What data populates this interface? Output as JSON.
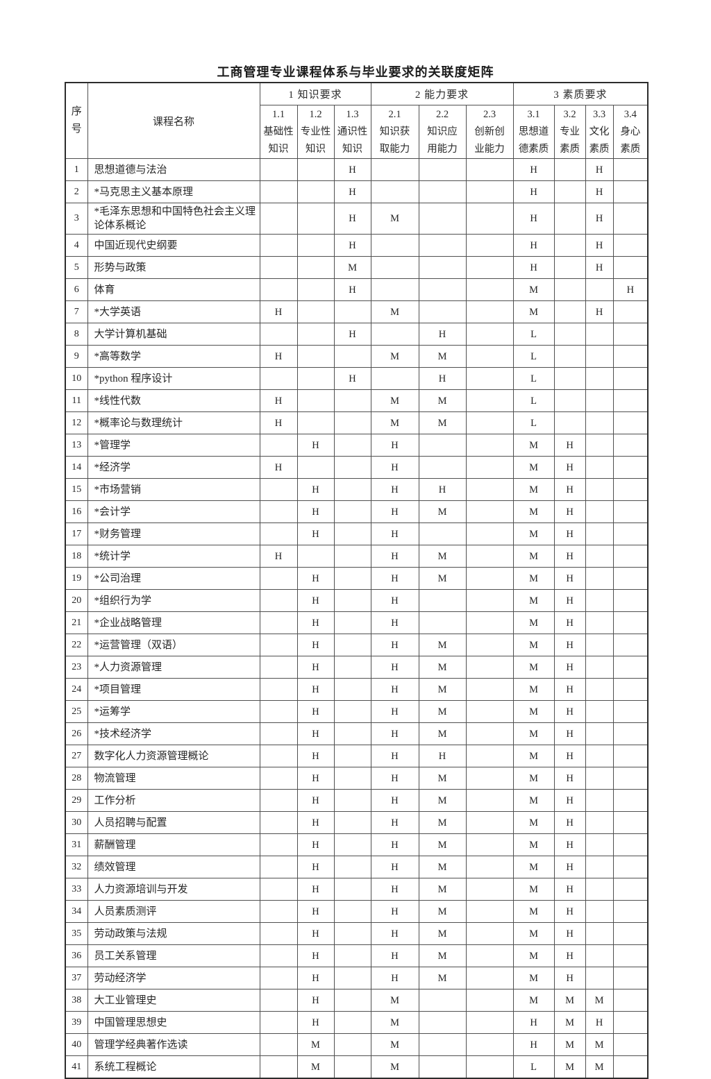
{
  "page": {
    "title": "工商管理专业课程体系与毕业要求的关联度矩阵"
  },
  "table": {
    "corner": {
      "index_line1": "序",
      "index_line2": "号",
      "course": "课程名称"
    },
    "groups": [
      {
        "label": "1 知识要求",
        "span": 3
      },
      {
        "label": "2 能力要求",
        "span": 3
      },
      {
        "label": "3 素质要求",
        "span": 4
      }
    ],
    "subheaders": [
      [
        "1.1",
        "基础性",
        "知识"
      ],
      [
        "1.2",
        "专业性",
        "知识"
      ],
      [
        "1.3",
        "通识性",
        "知识"
      ],
      [
        "2.1",
        "知识获",
        "取能力"
      ],
      [
        "2.2",
        "知识应",
        "用能力"
      ],
      [
        "2.3",
        "创新创",
        "业能力"
      ],
      [
        "3.1",
        "思想道",
        "德素质"
      ],
      [
        "3.2",
        "专业",
        "素质"
      ],
      [
        "3.3",
        "文化",
        "素质"
      ],
      [
        "3.4",
        "身心",
        "素质"
      ]
    ],
    "legend_values": [
      "H",
      "M",
      "L"
    ],
    "rows": [
      {
        "no": "1",
        "course": "思想道德与法治",
        "v": [
          "",
          "",
          "H",
          "",
          "",
          "",
          "H",
          "",
          "H",
          ""
        ]
      },
      {
        "no": "2",
        "course": "*马克思主义基本原理",
        "v": [
          "",
          "",
          "H",
          "",
          "",
          "",
          "H",
          "",
          "H",
          ""
        ]
      },
      {
        "no": "3",
        "course": "*毛泽东思想和中国特色社会主义理论体系概论",
        "v": [
          "",
          "",
          "H",
          "M",
          "",
          "",
          "H",
          "",
          "H",
          ""
        ]
      },
      {
        "no": "4",
        "course": "中国近现代史纲要",
        "v": [
          "",
          "",
          "H",
          "",
          "",
          "",
          "H",
          "",
          "H",
          ""
        ]
      },
      {
        "no": "5",
        "course": "形势与政策",
        "v": [
          "",
          "",
          "M",
          "",
          "",
          "",
          "H",
          "",
          "H",
          ""
        ]
      },
      {
        "no": "6",
        "course": "体育",
        "v": [
          "",
          "",
          "H",
          "",
          "",
          "",
          "M",
          "",
          "",
          "H"
        ]
      },
      {
        "no": "7",
        "course": "*大学英语",
        "v": [
          "H",
          "",
          "",
          "M",
          "",
          "",
          "M",
          "",
          "H",
          ""
        ]
      },
      {
        "no": "8",
        "course": "大学计算机基础",
        "v": [
          "",
          "",
          "H",
          "",
          "H",
          "",
          "L",
          "",
          "",
          ""
        ]
      },
      {
        "no": "9",
        "course": "*高等数学",
        "v": [
          "H",
          "",
          "",
          "M",
          "M",
          "",
          "L",
          "",
          "",
          ""
        ]
      },
      {
        "no": "10",
        "course": "*python 程序设计",
        "v": [
          "",
          "",
          "H",
          "",
          "H",
          "",
          "L",
          "",
          "",
          ""
        ]
      },
      {
        "no": "11",
        "course": "*线性代数",
        "v": [
          "H",
          "",
          "",
          "M",
          "M",
          "",
          "L",
          "",
          "",
          ""
        ]
      },
      {
        "no": "12",
        "course": "*概率论与数理统计",
        "v": [
          "H",
          "",
          "",
          "M",
          "M",
          "",
          "L",
          "",
          "",
          ""
        ]
      },
      {
        "no": "13",
        "course": "*管理学",
        "v": [
          "",
          "H",
          "",
          "H",
          "",
          "",
          "M",
          "H",
          "",
          ""
        ]
      },
      {
        "no": "14",
        "course": "*经济学",
        "v": [
          "H",
          "",
          "",
          "H",
          "",
          "",
          "M",
          "H",
          "",
          ""
        ]
      },
      {
        "no": "15",
        "course": "*市场营销",
        "v": [
          "",
          "H",
          "",
          "H",
          "H",
          "",
          "M",
          "H",
          "",
          ""
        ]
      },
      {
        "no": "16",
        "course": "*会计学",
        "v": [
          "",
          "H",
          "",
          "H",
          "M",
          "",
          "M",
          "H",
          "",
          ""
        ]
      },
      {
        "no": "17",
        "course": "*财务管理",
        "v": [
          "",
          "H",
          "",
          "H",
          "",
          "",
          "M",
          "H",
          "",
          ""
        ]
      },
      {
        "no": "18",
        "course": "*统计学",
        "v": [
          "H",
          "",
          "",
          "H",
          "M",
          "",
          "M",
          "H",
          "",
          ""
        ]
      },
      {
        "no": "19",
        "course": "*公司治理",
        "v": [
          "",
          "H",
          "",
          "H",
          "M",
          "",
          "M",
          "H",
          "",
          ""
        ]
      },
      {
        "no": "20",
        "course": "*组织行为学",
        "v": [
          "",
          "H",
          "",
          "H",
          "",
          "",
          "M",
          "H",
          "",
          ""
        ]
      },
      {
        "no": "21",
        "course": "*企业战略管理",
        "v": [
          "",
          "H",
          "",
          "H",
          "",
          "",
          "M",
          "H",
          "",
          ""
        ]
      },
      {
        "no": "22",
        "course": "*运营管理（双语）",
        "v": [
          "",
          "H",
          "",
          "H",
          "M",
          "",
          "M",
          "H",
          "",
          ""
        ]
      },
      {
        "no": "23",
        "course": "*人力资源管理",
        "v": [
          "",
          "H",
          "",
          "H",
          "M",
          "",
          "M",
          "H",
          "",
          ""
        ]
      },
      {
        "no": "24",
        "course": "*项目管理",
        "v": [
          "",
          "H",
          "",
          "H",
          "M",
          "",
          "M",
          "H",
          "",
          ""
        ]
      },
      {
        "no": "25",
        "course": "*运筹学",
        "v": [
          "",
          "H",
          "",
          "H",
          "M",
          "",
          "M",
          "H",
          "",
          ""
        ]
      },
      {
        "no": "26",
        "course": "*技术经济学",
        "v": [
          "",
          "H",
          "",
          "H",
          "M",
          "",
          "M",
          "H",
          "",
          ""
        ]
      },
      {
        "no": "27",
        "course": "数字化人力资源管理概论",
        "v": [
          "",
          "H",
          "",
          "H",
          "H",
          "",
          "M",
          "H",
          "",
          ""
        ]
      },
      {
        "no": "28",
        "course": "物流管理",
        "v": [
          "",
          "H",
          "",
          "H",
          "M",
          "",
          "M",
          "H",
          "",
          ""
        ]
      },
      {
        "no": "29",
        "course": "工作分析",
        "v": [
          "",
          "H",
          "",
          "H",
          "M",
          "",
          "M",
          "H",
          "",
          ""
        ]
      },
      {
        "no": "30",
        "course": "人员招聘与配置",
        "v": [
          "",
          "H",
          "",
          "H",
          "M",
          "",
          "M",
          "H",
          "",
          ""
        ]
      },
      {
        "no": "31",
        "course": "薪酬管理",
        "v": [
          "",
          "H",
          "",
          "H",
          "M",
          "",
          "M",
          "H",
          "",
          ""
        ]
      },
      {
        "no": "32",
        "course": "绩效管理",
        "v": [
          "",
          "H",
          "",
          "H",
          "M",
          "",
          "M",
          "H",
          "",
          ""
        ]
      },
      {
        "no": "33",
        "course": "人力资源培训与开发",
        "v": [
          "",
          "H",
          "",
          "H",
          "M",
          "",
          "M",
          "H",
          "",
          ""
        ]
      },
      {
        "no": "34",
        "course": "人员素质测评",
        "v": [
          "",
          "H",
          "",
          "H",
          "M",
          "",
          "M",
          "H",
          "",
          ""
        ]
      },
      {
        "no": "35",
        "course": "劳动政策与法规",
        "v": [
          "",
          "H",
          "",
          "H",
          "M",
          "",
          "M",
          "H",
          "",
          ""
        ]
      },
      {
        "no": "36",
        "course": "员工关系管理",
        "v": [
          "",
          "H",
          "",
          "H",
          "M",
          "",
          "M",
          "H",
          "",
          ""
        ]
      },
      {
        "no": "37",
        "course": "劳动经济学",
        "v": [
          "",
          "H",
          "",
          "H",
          "M",
          "",
          "M",
          "H",
          "",
          ""
        ]
      },
      {
        "no": "38",
        "course": "大工业管理史",
        "v": [
          "",
          "H",
          "",
          "M",
          "",
          "",
          "M",
          "M",
          "M",
          ""
        ]
      },
      {
        "no": "39",
        "course": "中国管理思想史",
        "v": [
          "",
          "H",
          "",
          "M",
          "",
          "",
          "H",
          "M",
          "H",
          ""
        ]
      },
      {
        "no": "40",
        "course": "管理学经典著作选读",
        "v": [
          "",
          "M",
          "",
          "M",
          "",
          "",
          "H",
          "M",
          "M",
          ""
        ]
      },
      {
        "no": "41",
        "course": "系统工程概论",
        "v": [
          "",
          "M",
          "",
          "M",
          "",
          "",
          "L",
          "M",
          "M",
          ""
        ]
      }
    ]
  }
}
